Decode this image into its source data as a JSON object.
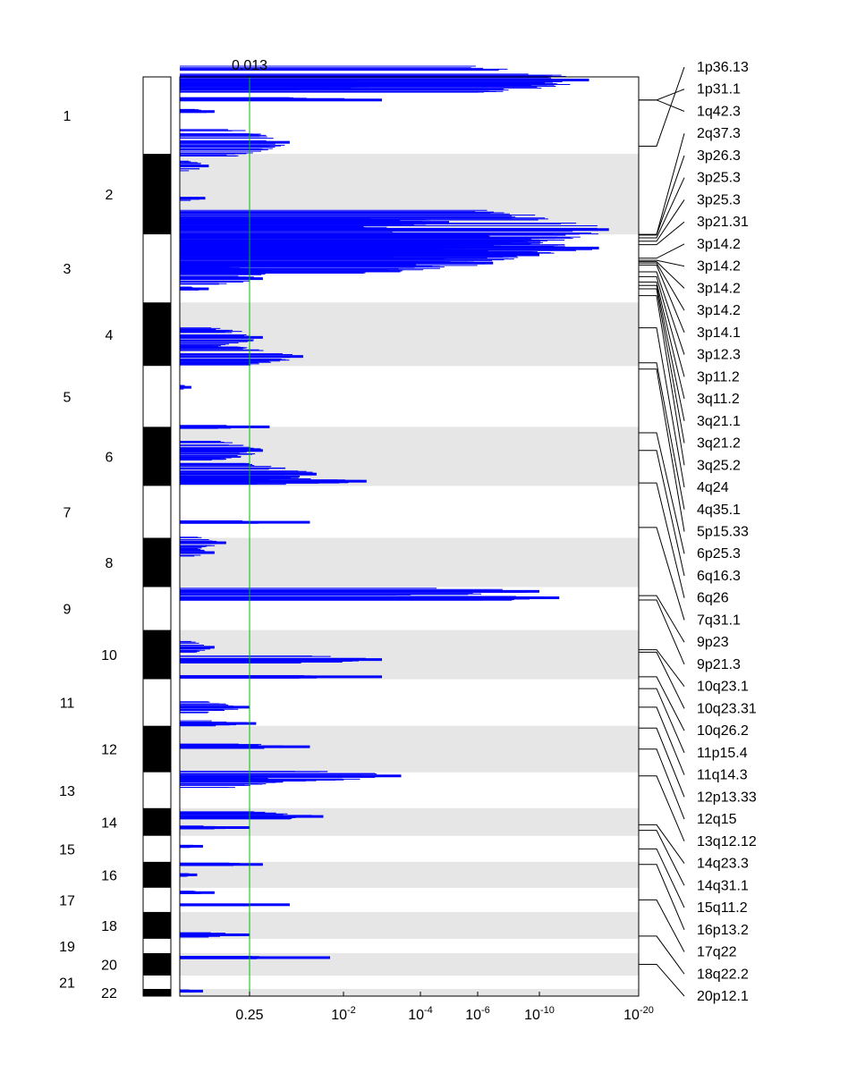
{
  "chart_data": {
    "type": "gistic-amplification",
    "threshold_label": "0.013",
    "x_ticks": [
      {
        "base": "0.25",
        "exp": "",
        "value": 0.25
      },
      {
        "base": "10",
        "exp": "-2",
        "value": 0.01
      },
      {
        "base": "10",
        "exp": "-4",
        "value": 0.0001
      },
      {
        "base": "10",
        "exp": "-6",
        "value": 1e-06
      },
      {
        "base": "10",
        "exp": "-10",
        "value": 1e-10
      },
      {
        "base": "10",
        "exp": "-20",
        "value": 1e-20
      }
    ],
    "chromosomes": [
      {
        "label": "1",
        "size": 86
      },
      {
        "label": "2",
        "size": 90
      },
      {
        "label": "3",
        "size": 76
      },
      {
        "label": "4",
        "size": 71
      },
      {
        "label": "5",
        "size": 68
      },
      {
        "label": "6",
        "size": 66
      },
      {
        "label": "7",
        "size": 58
      },
      {
        "label": "8",
        "size": 55
      },
      {
        "label": "9",
        "size": 48
      },
      {
        "label": "10",
        "size": 55
      },
      {
        "label": "11",
        "size": 52
      },
      {
        "label": "12",
        "size": 52
      },
      {
        "label": "13",
        "size": 40
      },
      {
        "label": "14",
        "size": 31
      },
      {
        "label": "15",
        "size": 29
      },
      {
        "label": "16",
        "size": 29
      },
      {
        "label": "17",
        "size": 27
      },
      {
        "label": "18",
        "size": 30
      },
      {
        "label": "19",
        "size": 16
      },
      {
        "label": "20",
        "size": 25
      },
      {
        "label": "21",
        "size": 15
      },
      {
        "label": "22",
        "size": 8
      }
    ],
    "peak_labels": [
      "1p36.13",
      "1p31.1",
      "1q42.3",
      "2q37.3",
      "3p26.3",
      "3p25.3",
      "3p25.3",
      "3p21.31",
      "3p14.2",
      "3p14.2",
      "3p14.2",
      "3p14.2",
      "3p14.1",
      "3p12.3",
      "3p11.2",
      "3q11.2",
      "3q21.1",
      "3q21.2",
      "3q25.2",
      "4q24",
      "4q35.1",
      "5p15.33",
      "6p25.3",
      "6q16.3",
      "6q26",
      "7q31.1",
      "9p23",
      "9p21.3",
      "10q23.1",
      "10q23.31",
      "10q26.2",
      "11p15.4",
      "11q14.3",
      "12p13.33",
      "12q15",
      "13q12.12",
      "14q23.3",
      "14q31.1",
      "15q11.2",
      "16p13.2",
      "17q22",
      "18q22.2",
      "20p12.1"
    ],
    "peak_positions": [
      0.9,
      0.3,
      0.3,
      1.0,
      0.01,
      0.05,
      0.1,
      0.15,
      0.35,
      0.38,
      0.4,
      0.42,
      0.45,
      0.55,
      0.62,
      0.7,
      0.75,
      0.8,
      0.9,
      0.4,
      0.95,
      0.05,
      0.1,
      0.4,
      0.95,
      0.8,
      0.2,
      0.3,
      0.4,
      0.45,
      0.95,
      0.2,
      0.6,
      0.05,
      0.5,
      0.1,
      0.6,
      0.8,
      0.5,
      0.1,
      0.5,
      0.9,
      0.5
    ],
    "peak_chrom": [
      0,
      0,
      0,
      1,
      2,
      2,
      2,
      2,
      2,
      2,
      2,
      2,
      2,
      2,
      2,
      2,
      2,
      2,
      2,
      3,
      3,
      4,
      5,
      5,
      5,
      6,
      8,
      8,
      9,
      9,
      9,
      10,
      10,
      11,
      11,
      12,
      13,
      13,
      14,
      15,
      16,
      17,
      19
    ],
    "peaks": [
      {
        "c": 0,
        "p": 0.04,
        "q": 15.0,
        "w": 0.06
      },
      {
        "c": 0,
        "p": 0.1,
        "q": 4.0,
        "w": 0.02
      },
      {
        "c": 0,
        "p": 0.3,
        "q": 3.0,
        "w": 0.01
      },
      {
        "c": 0,
        "p": 0.45,
        "q": 0.3,
        "w": 0.01
      },
      {
        "c": 0,
        "p": 0.85,
        "q": 1.2,
        "w": 0.06
      },
      {
        "c": 1,
        "p": 0.15,
        "q": 0.25,
        "w": 0.02
      },
      {
        "c": 1,
        "p": 0.55,
        "q": 0.22,
        "w": 0.01
      },
      {
        "c": 1,
        "p": 0.85,
        "q": 5.0,
        "w": 0.03
      },
      {
        "c": 1,
        "p": 0.94,
        "q": 17.0,
        "w": 0.08
      },
      {
        "c": 2,
        "p": 0.1,
        "q": 9.0,
        "w": 0.05
      },
      {
        "c": 2,
        "p": 0.2,
        "q": 16.0,
        "w": 0.05
      },
      {
        "c": 2,
        "p": 0.3,
        "q": 10.0,
        "w": 0.05
      },
      {
        "c": 2,
        "p": 0.42,
        "q": 7.0,
        "w": 0.05
      },
      {
        "c": 2,
        "p": 0.55,
        "q": 1.0,
        "w": 0.03
      },
      {
        "c": 2,
        "p": 0.65,
        "q": 0.8,
        "w": 0.03
      },
      {
        "c": 2,
        "p": 0.8,
        "q": 0.25,
        "w": 0.01
      },
      {
        "c": 3,
        "p": 0.55,
        "q": 0.8,
        "w": 0.05
      },
      {
        "c": 3,
        "p": 0.85,
        "q": 1.4,
        "w": 0.05
      },
      {
        "c": 4,
        "p": 0.35,
        "q": 0.1,
        "w": 0.01
      },
      {
        "c": 5,
        "p": 0.0,
        "q": 0.9,
        "w": 0.01
      },
      {
        "c": 5,
        "p": 0.4,
        "q": 0.8,
        "w": 0.06
      },
      {
        "c": 5,
        "p": 0.8,
        "q": 1.6,
        "w": 0.06
      },
      {
        "c": 5,
        "p": 0.92,
        "q": 2.6,
        "w": 0.02
      },
      {
        "c": 6,
        "p": 0.7,
        "q": 1.5,
        "w": 0.01
      },
      {
        "c": 7,
        "p": 0.1,
        "q": 0.4,
        "w": 0.04
      },
      {
        "c": 7,
        "p": 0.3,
        "q": 0.3,
        "w": 0.03
      },
      {
        "c": 8,
        "p": 0.1,
        "q": 10.0,
        "w": 0.03
      },
      {
        "c": 8,
        "p": 0.25,
        "q": 12.0,
        "w": 0.03
      },
      {
        "c": 9,
        "p": 0.35,
        "q": 0.3,
        "w": 0.04
      },
      {
        "c": 9,
        "p": 0.6,
        "q": 3.0,
        "w": 0.03
      },
      {
        "c": 9,
        "p": 0.95,
        "q": 3.0,
        "w": 0.01
      },
      {
        "c": 10,
        "p": 0.6,
        "q": 0.6,
        "w": 0.04
      },
      {
        "c": 10,
        "p": 0.95,
        "q": 0.7,
        "w": 0.02
      },
      {
        "c": 11,
        "p": 0.45,
        "q": 1.5,
        "w": 0.02
      },
      {
        "c": 12,
        "p": 0.1,
        "q": 3.5,
        "w": 0.05
      },
      {
        "c": 12,
        "p": 0.25,
        "q": 1.1,
        "w": 0.06
      },
      {
        "c": 13,
        "p": 0.3,
        "q": 1.7,
        "w": 0.06
      },
      {
        "c": 13,
        "p": 0.7,
        "q": 0.6,
        "w": 0.02
      },
      {
        "c": 14,
        "p": 0.4,
        "q": 0.2,
        "w": 0.01
      },
      {
        "c": 15,
        "p": 0.1,
        "q": 0.8,
        "w": 0.03
      },
      {
        "c": 15,
        "p": 0.5,
        "q": 0.15,
        "w": 0.02
      },
      {
        "c": 16,
        "p": 0.2,
        "q": 0.3,
        "w": 0.02
      },
      {
        "c": 16,
        "p": 0.7,
        "q": 1.2,
        "w": 0.01
      },
      {
        "c": 17,
        "p": 0.85,
        "q": 0.6,
        "w": 0.03
      },
      {
        "c": 19,
        "p": 0.2,
        "q": 1.8,
        "w": 0.02
      },
      {
        "c": 21,
        "p": 0.3,
        "q": 0.2,
        "w": 0.02
      }
    ]
  }
}
